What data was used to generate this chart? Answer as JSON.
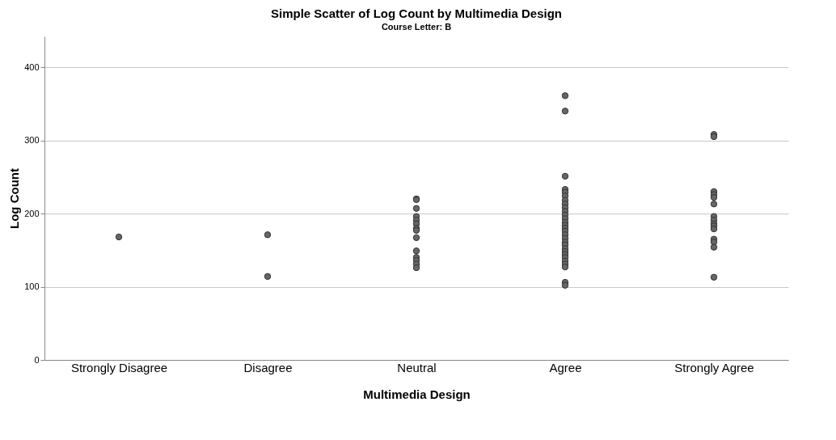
{
  "chart_data": {
    "type": "scatter",
    "title": "Simple Scatter of Log Count by Multimedia Design",
    "subtitle": "Course Letter: B",
    "xlabel": "Multimedia Design",
    "ylabel": "Log Count",
    "categories": [
      "Strongly Disagree",
      "Disagree",
      "Neutral",
      "Agree",
      "Strongly Agree"
    ],
    "series": [
      {
        "color": "#666666",
        "x": [
          "Strongly Disagree",
          "Disagree",
          "Disagree",
          "Neutral",
          "Neutral",
          "Neutral",
          "Neutral",
          "Neutral",
          "Neutral",
          "Neutral",
          "Neutral",
          "Neutral",
          "Neutral",
          "Neutral",
          "Neutral",
          "Neutral",
          "Neutral",
          "Agree",
          "Agree",
          "Agree",
          "Agree",
          "Agree",
          "Agree",
          "Agree",
          "Agree",
          "Agree",
          "Agree",
          "Agree",
          "Agree",
          "Agree",
          "Agree",
          "Agree",
          "Agree",
          "Agree",
          "Agree",
          "Agree",
          "Agree",
          "Agree",
          "Agree",
          "Agree",
          "Agree",
          "Agree",
          "Agree",
          "Agree",
          "Agree",
          "Agree",
          "Strongly Agree",
          "Strongly Agree",
          "Strongly Agree",
          "Strongly Agree",
          "Strongly Agree",
          "Strongly Agree",
          "Strongly Agree",
          "Strongly Agree",
          "Strongly Agree",
          "Strongly Agree",
          "Strongly Agree",
          "Strongly Agree",
          "Strongly Agree",
          "Strongly Agree",
          "Strongly Agree"
        ],
        "values": [
          168,
          171,
          114,
          220,
          219,
          207,
          196,
          191,
          186,
          180,
          177,
          167,
          149,
          140,
          136,
          131,
          126,
          361,
          340,
          251,
          233,
          229,
          224,
          218,
          213,
          208,
          203,
          198,
          193,
          188,
          184,
          180,
          176,
          171,
          166,
          161,
          157,
          152,
          148,
          144,
          140,
          135,
          131,
          127,
          106,
          102,
          308,
          305,
          230,
          226,
          222,
          213,
          196,
          191,
          186,
          183,
          179,
          165,
          161,
          154,
          113
        ]
      }
    ],
    "ylim": [
      0,
      442
    ],
    "yticks": [
      0,
      100,
      200,
      300,
      400
    ],
    "grid": "y",
    "legend": false,
    "marker": "circle"
  }
}
